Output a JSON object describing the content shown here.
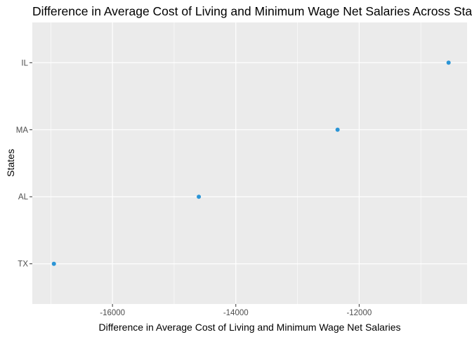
{
  "chart_data": {
    "type": "scatter",
    "title": "Difference in Average Cost of Living and Minimum Wage Net Salaries Across States",
    "xlabel": "Difference in Average Cost of Living and Minimum Wage Net Salaries",
    "ylabel": "States",
    "categories": [
      "TX",
      "AL",
      "MA",
      "IL"
    ],
    "points": [
      {
        "state": "TX",
        "x": -16950
      },
      {
        "state": "AL",
        "x": -14600
      },
      {
        "state": "MA",
        "x": -12350
      },
      {
        "state": "IL",
        "x": -10550
      }
    ],
    "xlim": [
      -17300,
      -10250
    ],
    "xticks": [
      -16000,
      -14000,
      -12000
    ],
    "xtick_labels": [
      "-16000",
      "-14000",
      "-12000"
    ],
    "grid": true,
    "panel_color": "#ebebeb",
    "grid_color": "#ffffff",
    "point_color": "#2b95d6"
  }
}
